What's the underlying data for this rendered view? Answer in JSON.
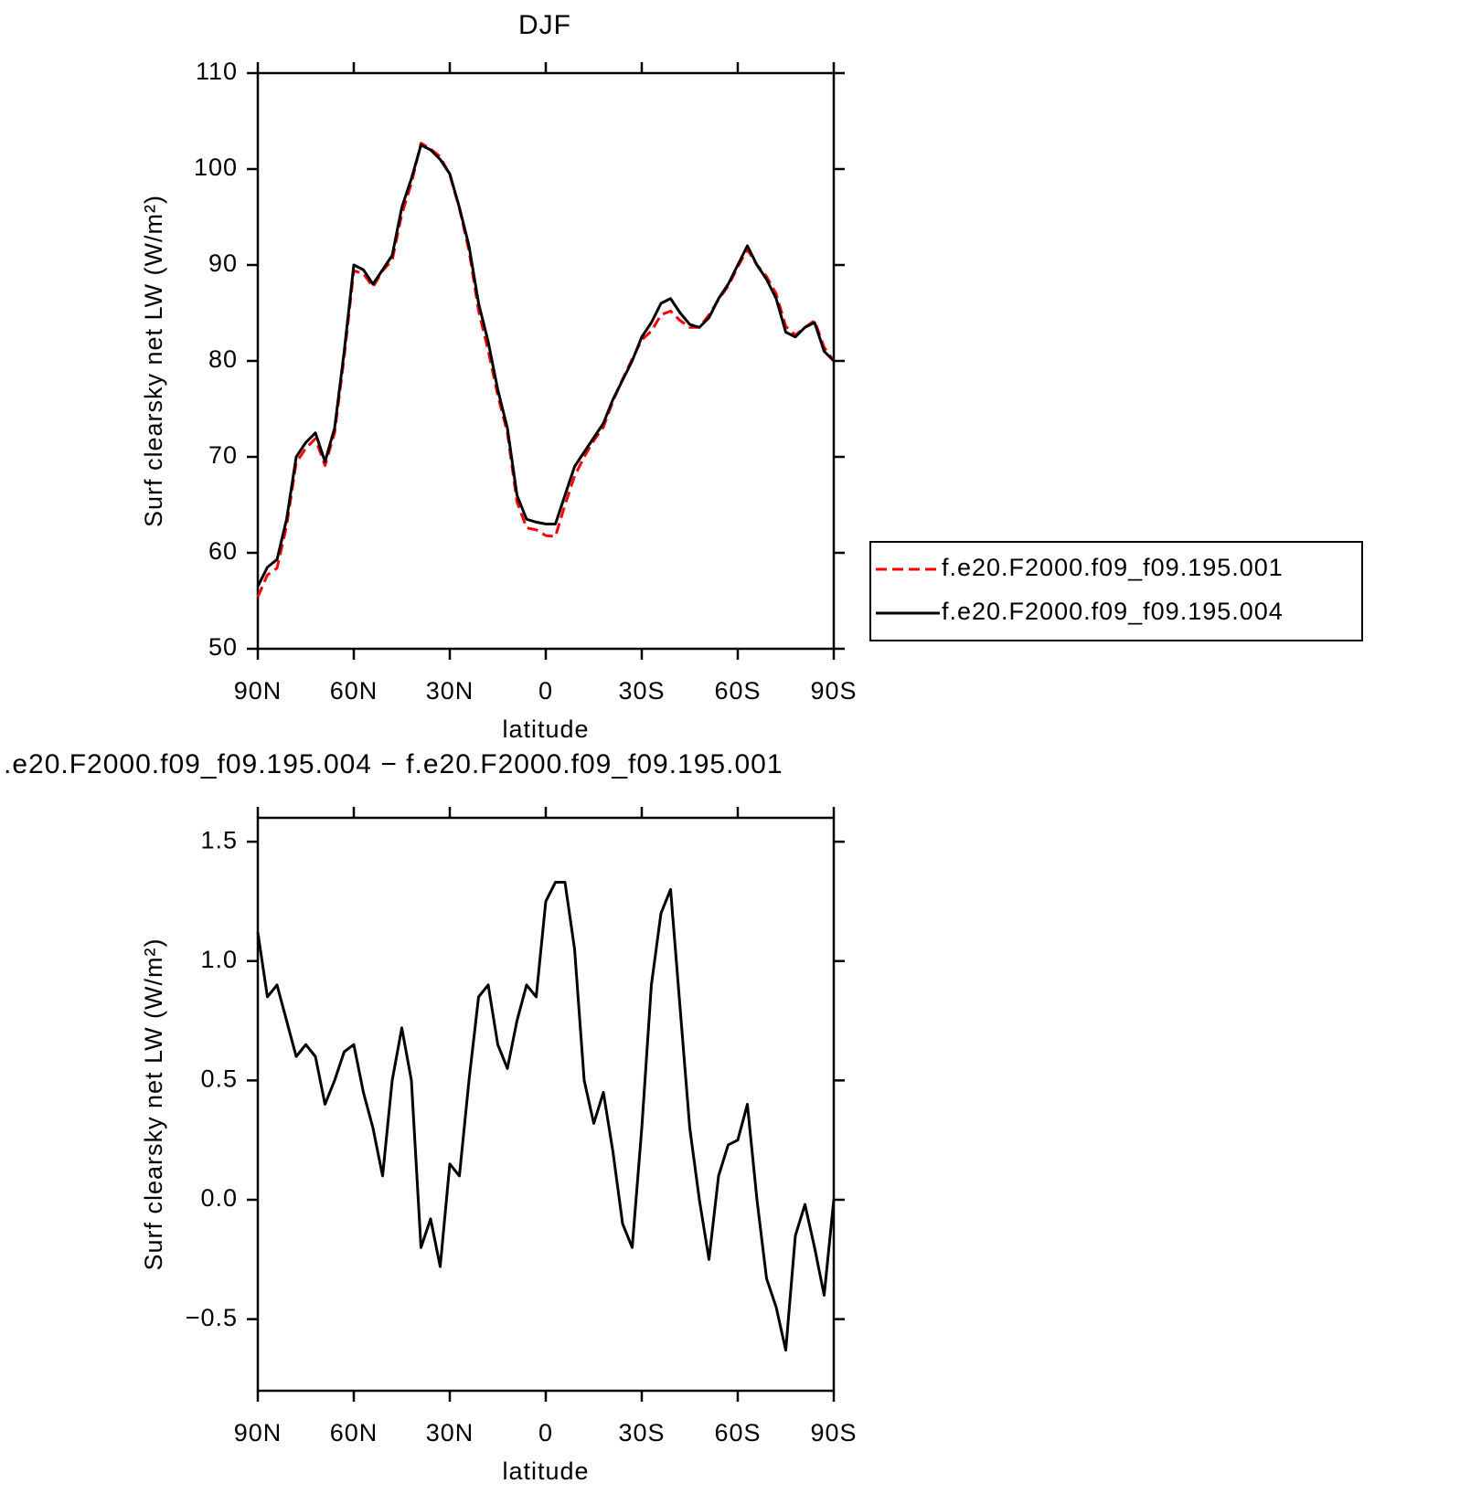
{
  "chart_data": [
    {
      "type": "line",
      "title": "DJF",
      "xlabel": "latitude",
      "ylabel": "Surf clearsky net LW (W/m²)",
      "xlim": [
        90,
        -90
      ],
      "ylim": [
        50,
        110
      ],
      "xticks": [
        {
          "value": 90,
          "label": "90N"
        },
        {
          "value": 60,
          "label": "60N"
        },
        {
          "value": 30,
          "label": "30N"
        },
        0,
        {
          "value": -30,
          "label": "30S"
        },
        {
          "value": -60,
          "label": "60S"
        },
        {
          "value": -90,
          "label": "90S"
        }
      ],
      "yticks": [
        50,
        60,
        70,
        80,
        90,
        100,
        110
      ],
      "legend": "right",
      "x": [
        90,
        87,
        84,
        81,
        78,
        75,
        72,
        69,
        66,
        63,
        60,
        57,
        54,
        51,
        48,
        45,
        42,
        39,
        36,
        33,
        30,
        27,
        24,
        21,
        18,
        15,
        12,
        9,
        6,
        3,
        0,
        -3,
        -6,
        -9,
        -12,
        -15,
        -18,
        -21,
        -24,
        -27,
        -30,
        -33,
        -36,
        -39,
        -42,
        -45,
        -48,
        -51,
        -54,
        -57,
        -60,
        -63,
        -66,
        -69,
        -72,
        -75,
        -78,
        -81,
        -84,
        -87,
        -90
      ],
      "series": [
        {
          "name": "f.e20.F2000.f09_f09.195.001",
          "color": "#ff0000",
          "line_style": "dashed",
          "values": [
            55.4,
            57.7,
            58.4,
            62.8,
            69.4,
            70.9,
            71.9,
            69.1,
            72.5,
            80.4,
            89.4,
            89.1,
            87.7,
            89.4,
            90.5,
            95.3,
            98.5,
            102.7,
            102.1,
            101.3,
            99.4,
            95.9,
            91.5,
            85.2,
            81.1,
            76.4,
            72.5,
            65.3,
            62.6,
            62.4,
            61.8,
            61.7,
            65.0,
            68.0,
            70.0,
            71.7,
            73.1,
            75.8,
            78.1,
            80.2,
            82.2,
            83.1,
            84.8,
            85.2,
            84.2,
            83.5,
            83.5,
            84.8,
            86.4,
            87.8,
            89.8,
            91.6,
            90.0,
            88.8,
            87.0,
            83.6,
            82.7,
            83.5,
            84.2,
            81.4,
            80.0
          ]
        },
        {
          "name": "f.e20.F2000.f09_f09.195.004",
          "color": "#000000",
          "line_style": "solid",
          "values": [
            56.5,
            58.5,
            59.3,
            63.5,
            70,
            71.5,
            72.5,
            69.5,
            73,
            81,
            90,
            89.5,
            88,
            89.5,
            91,
            96,
            99,
            102.5,
            102,
            101,
            99.5,
            96,
            92,
            86,
            82,
            77,
            73,
            66,
            63.5,
            63.2,
            63,
            63,
            66,
            69,
            70.5,
            72,
            73.5,
            76,
            78,
            80,
            82.5,
            84,
            86,
            86.5,
            85,
            83.8,
            83.5,
            84.5,
            86.5,
            88,
            90,
            92,
            90,
            88.5,
            86.5,
            83,
            82.5,
            83.5,
            84,
            81,
            80
          ]
        }
      ]
    },
    {
      "type": "line",
      "title": ".e20.F2000.f09_f09.195.004 − f.e20.F2000.f09_f09.195.001",
      "xlabel": "latitude",
      "ylabel": "Surf clearsky net LW (W/m²)",
      "xlim": [
        90,
        -90
      ],
      "ylim": [
        -0.8,
        1.6
      ],
      "xticks": [
        {
          "value": 90,
          "label": "90N"
        },
        {
          "value": 60,
          "label": "60N"
        },
        {
          "value": 30,
          "label": "30N"
        },
        0,
        {
          "value": -30,
          "label": "30S"
        },
        {
          "value": -60,
          "label": "60S"
        },
        {
          "value": -90,
          "label": "90S"
        }
      ],
      "yticks": [
        {
          "value": -0.5,
          "label": "−0.5"
        },
        {
          "value": 0,
          "label": "0.0"
        },
        0.5,
        {
          "value": 1,
          "label": "1.0"
        },
        1.5
      ],
      "x": [
        90,
        87,
        84,
        81,
        78,
        75,
        72,
        69,
        66,
        63,
        60,
        57,
        54,
        51,
        48,
        45,
        42,
        39,
        36,
        33,
        30,
        27,
        24,
        21,
        18,
        15,
        12,
        9,
        6,
        3,
        0,
        -3,
        -6,
        -9,
        -12,
        -15,
        -18,
        -21,
        -24,
        -27,
        -30,
        -33,
        -36,
        -39,
        -42,
        -45,
        -48,
        -51,
        -54,
        -57,
        -60,
        -63,
        -66,
        -69,
        -72,
        -75,
        -78,
        -81,
        -84,
        -87,
        -90
      ],
      "series": [
        {
          "color": "#000000",
          "line_style": "solid",
          "values": [
            1.12,
            0.85,
            0.9,
            0.75,
            0.6,
            0.65,
            0.6,
            0.4,
            0.5,
            0.62,
            0.65,
            0.45,
            0.3,
            0.1,
            0.5,
            0.72,
            0.5,
            -0.2,
            -0.08,
            -0.28,
            0.15,
            0.1,
            0.5,
            0.85,
            0.9,
            0.65,
            0.55,
            0.75,
            0.9,
            0.85,
            1.25,
            1.33,
            1.33,
            1.05,
            0.5,
            0.32,
            0.45,
            0.2,
            -0.1,
            -0.2,
            0.3,
            0.9,
            1.2,
            1.3,
            0.8,
            0.3,
            0.0,
            -0.25,
            0.1,
            0.23,
            0.25,
            0.4,
            0.0,
            -0.33,
            -0.45,
            -0.63,
            -0.15,
            -0.02,
            -0.2,
            -0.4,
            0.0
          ]
        }
      ]
    }
  ]
}
